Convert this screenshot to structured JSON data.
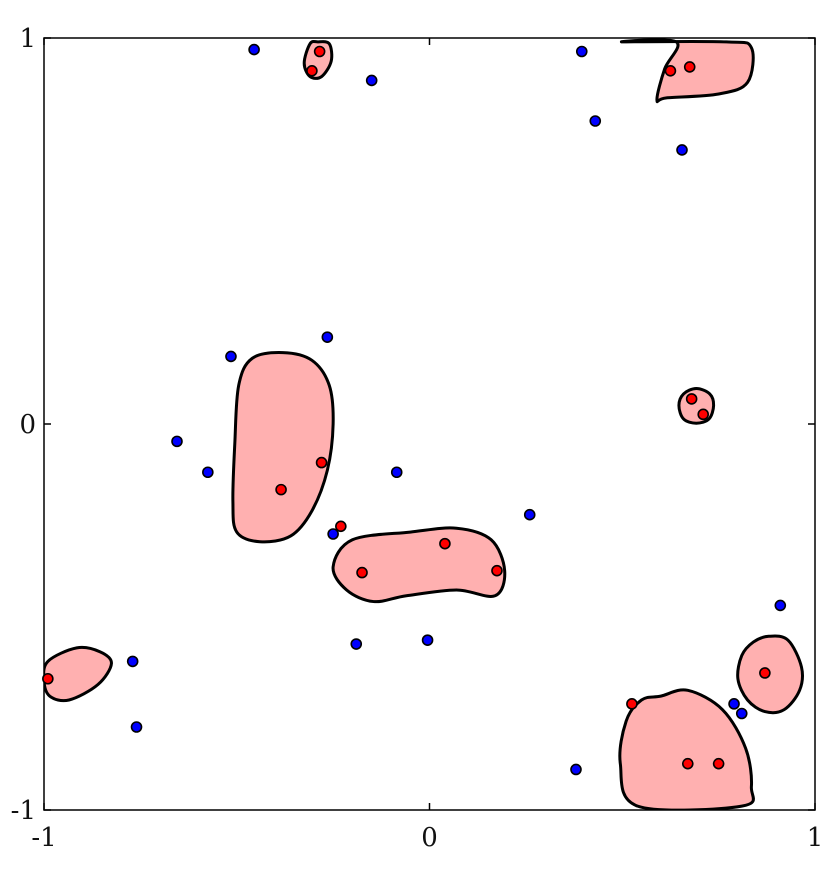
{
  "chart_data": {
    "type": "scatter",
    "title": "",
    "xlabel": "",
    "ylabel": "",
    "xlim": [
      -1,
      1
    ],
    "ylim": [
      -1,
      1
    ],
    "grid": false,
    "x_ticks": [
      "-1",
      "0",
      "1"
    ],
    "y_ticks": [
      "-1",
      "0",
      "1"
    ],
    "colors": {
      "blue_points": "#0000ff",
      "red_points": "#ff0000",
      "regions": "#ffb0b0",
      "outline": "#000000"
    },
    "series": [
      {
        "color": "#0000ff",
        "points": [
          [
            -0.455,
            0.97
          ],
          [
            -0.15,
            0.89
          ],
          [
            0.395,
            0.965
          ],
          [
            0.43,
            0.785
          ],
          [
            0.655,
            0.71
          ],
          [
            -0.265,
            0.225
          ],
          [
            -0.515,
            0.175
          ],
          [
            -0.655,
            -0.045
          ],
          [
            -0.575,
            -0.125
          ],
          [
            -0.085,
            -0.125
          ],
          [
            0.26,
            -0.235
          ],
          [
            -0.25,
            -0.285
          ],
          [
            -0.19,
            -0.57
          ],
          [
            -0.005,
            -0.56
          ],
          [
            -0.77,
            -0.615
          ],
          [
            -0.76,
            -0.785
          ],
          [
            0.38,
            -0.895
          ],
          [
            0.79,
            -0.725
          ],
          [
            0.81,
            -0.75
          ],
          [
            0.91,
            -0.47
          ]
        ]
      },
      {
        "color": "#ff0000",
        "points": [
          [
            -0.285,
            0.965
          ],
          [
            -0.305,
            0.915
          ],
          [
            0.625,
            0.915
          ],
          [
            0.675,
            0.925
          ],
          [
            0.68,
            0.065
          ],
          [
            0.71,
            0.025
          ],
          [
            -0.28,
            -0.1
          ],
          [
            -0.385,
            -0.17
          ],
          [
            -0.23,
            -0.265
          ],
          [
            0.04,
            -0.31
          ],
          [
            -0.175,
            -0.385
          ],
          [
            0.175,
            -0.38
          ],
          [
            -0.99,
            -0.66
          ],
          [
            0.525,
            -0.725
          ],
          [
            0.67,
            -0.88
          ],
          [
            0.75,
            -0.88
          ],
          [
            0.87,
            -0.645
          ]
        ]
      }
    ],
    "regions": [
      {
        "name": "top-left-small",
        "shape": [
          [
            -0.29,
            0.99
          ],
          [
            -0.26,
            0.985
          ],
          [
            -0.255,
            0.94
          ],
          [
            -0.28,
            0.9
          ],
          [
            -0.31,
            0.9
          ],
          [
            -0.325,
            0.935
          ],
          [
            -0.31,
            0.985
          ]
        ]
      },
      {
        "name": "top-right",
        "shape": [
          [
            0.5,
            0.99
          ],
          [
            0.77,
            0.99
          ],
          [
            0.835,
            0.975
          ],
          [
            0.825,
            0.885
          ],
          [
            0.75,
            0.855
          ],
          [
            0.615,
            0.845
          ],
          [
            0.59,
            0.84
          ],
          [
            0.61,
            0.92
          ],
          [
            0.64,
            0.99
          ]
        ]
      },
      {
        "name": "small-circle",
        "shape": [
          [
            0.692,
            0.092
          ],
          [
            0.727,
            0.078
          ],
          [
            0.737,
            0.048
          ],
          [
            0.725,
            0.013
          ],
          [
            0.692,
            0.002
          ],
          [
            0.659,
            0.013
          ],
          [
            0.647,
            0.048
          ],
          [
            0.659,
            0.078
          ]
        ]
      },
      {
        "name": "center-left",
        "shape": [
          [
            -0.46,
            0.17
          ],
          [
            -0.38,
            0.185
          ],
          [
            -0.305,
            0.165
          ],
          [
            -0.26,
            0.1
          ],
          [
            -0.25,
            0.0
          ],
          [
            -0.265,
            -0.12
          ],
          [
            -0.305,
            -0.225
          ],
          [
            -0.36,
            -0.29
          ],
          [
            -0.44,
            -0.305
          ],
          [
            -0.5,
            -0.28
          ],
          [
            -0.51,
            -0.2
          ],
          [
            -0.505,
            -0.05
          ],
          [
            -0.495,
            0.1
          ]
        ]
      },
      {
        "name": "center-band",
        "shape": [
          [
            -0.2,
            -0.3
          ],
          [
            -0.05,
            -0.28
          ],
          [
            0.07,
            -0.27
          ],
          [
            0.16,
            -0.3
          ],
          [
            0.195,
            -0.38
          ],
          [
            0.17,
            -0.445
          ],
          [
            0.07,
            -0.43
          ],
          [
            -0.06,
            -0.445
          ],
          [
            -0.145,
            -0.46
          ],
          [
            -0.215,
            -0.43
          ],
          [
            -0.25,
            -0.37
          ]
        ]
      },
      {
        "name": "left-edge",
        "shape": [
          [
            -0.99,
            -0.615
          ],
          [
            -0.915,
            -0.58
          ],
          [
            -0.855,
            -0.59
          ],
          [
            -0.825,
            -0.62
          ],
          [
            -0.86,
            -0.675
          ],
          [
            -0.935,
            -0.715
          ],
          [
            -0.985,
            -0.705
          ],
          [
            -1.0,
            -0.665
          ]
        ]
      },
      {
        "name": "bottom-right-big",
        "shape": [
          [
            0.6,
            -0.705
          ],
          [
            0.67,
            -0.69
          ],
          [
            0.76,
            -0.74
          ],
          [
            0.82,
            -0.84
          ],
          [
            0.835,
            -0.94
          ],
          [
            0.81,
            -0.99
          ],
          [
            0.54,
            -0.99
          ],
          [
            0.495,
            -0.88
          ],
          [
            0.51,
            -0.77
          ],
          [
            0.55,
            -0.715
          ]
        ]
      },
      {
        "name": "bottom-right-oval",
        "shape": [
          [
            0.88,
            -0.55
          ],
          [
            0.93,
            -0.56
          ],
          [
            0.965,
            -0.63
          ],
          [
            0.96,
            -0.69
          ],
          [
            0.92,
            -0.74
          ],
          [
            0.87,
            -0.745
          ],
          [
            0.825,
            -0.715
          ],
          [
            0.8,
            -0.66
          ],
          [
            0.81,
            -0.6
          ],
          [
            0.84,
            -0.565
          ]
        ]
      }
    ]
  }
}
